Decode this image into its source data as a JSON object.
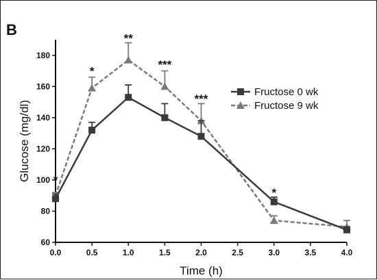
{
  "panel_label": "B",
  "chart_data": {
    "type": "line",
    "title": "",
    "xlabel": "Time (h)",
    "ylabel": "Glucose (mg/dl)",
    "xlim": [
      0,
      4.0
    ],
    "ylim": [
      60,
      190
    ],
    "x_ticks": [
      "0.0",
      "0.5",
      "1.0",
      "1.5",
      "2.0",
      "2.5",
      "3.0",
      "3.5",
      "4.0"
    ],
    "y_ticks": [
      "60",
      "80",
      "100",
      "120",
      "140",
      "160",
      "180"
    ],
    "grid": false,
    "legend_position": "right-center",
    "series": [
      {
        "name": "Fructose 0 wk",
        "marker": "square",
        "line_style": "solid",
        "color": "#3a3a3a",
        "x": [
          0.0,
          0.5,
          1.0,
          1.5,
          2.0,
          3.0,
          4.0
        ],
        "y": [
          88,
          132,
          153,
          140,
          128,
          86,
          68
        ],
        "error": [
          3,
          5,
          8,
          9,
          10,
          3,
          2
        ]
      },
      {
        "name": "Fructose 9 wk",
        "marker": "triangle",
        "line_style": "dashed",
        "color": "#7a7a7a",
        "x": [
          0.0,
          0.5,
          1.0,
          1.5,
          2.0,
          3.0,
          4.0
        ],
        "y": [
          90,
          159,
          177,
          160,
          138,
          74,
          70
        ],
        "error": [
          2,
          7,
          11,
          10,
          11,
          3,
          4
        ]
      }
    ],
    "annotations": [
      {
        "x": 0.0,
        "y": 101,
        "text": "*"
      },
      {
        "x": 0.5,
        "y": 171,
        "text": "*"
      },
      {
        "x": 1.0,
        "y": 192,
        "text": "**"
      },
      {
        "x": 1.5,
        "y": 175,
        "text": "***"
      },
      {
        "x": 2.0,
        "y": 153,
        "text": "***"
      },
      {
        "x": 3.0,
        "y": 93,
        "text": "*"
      }
    ]
  }
}
